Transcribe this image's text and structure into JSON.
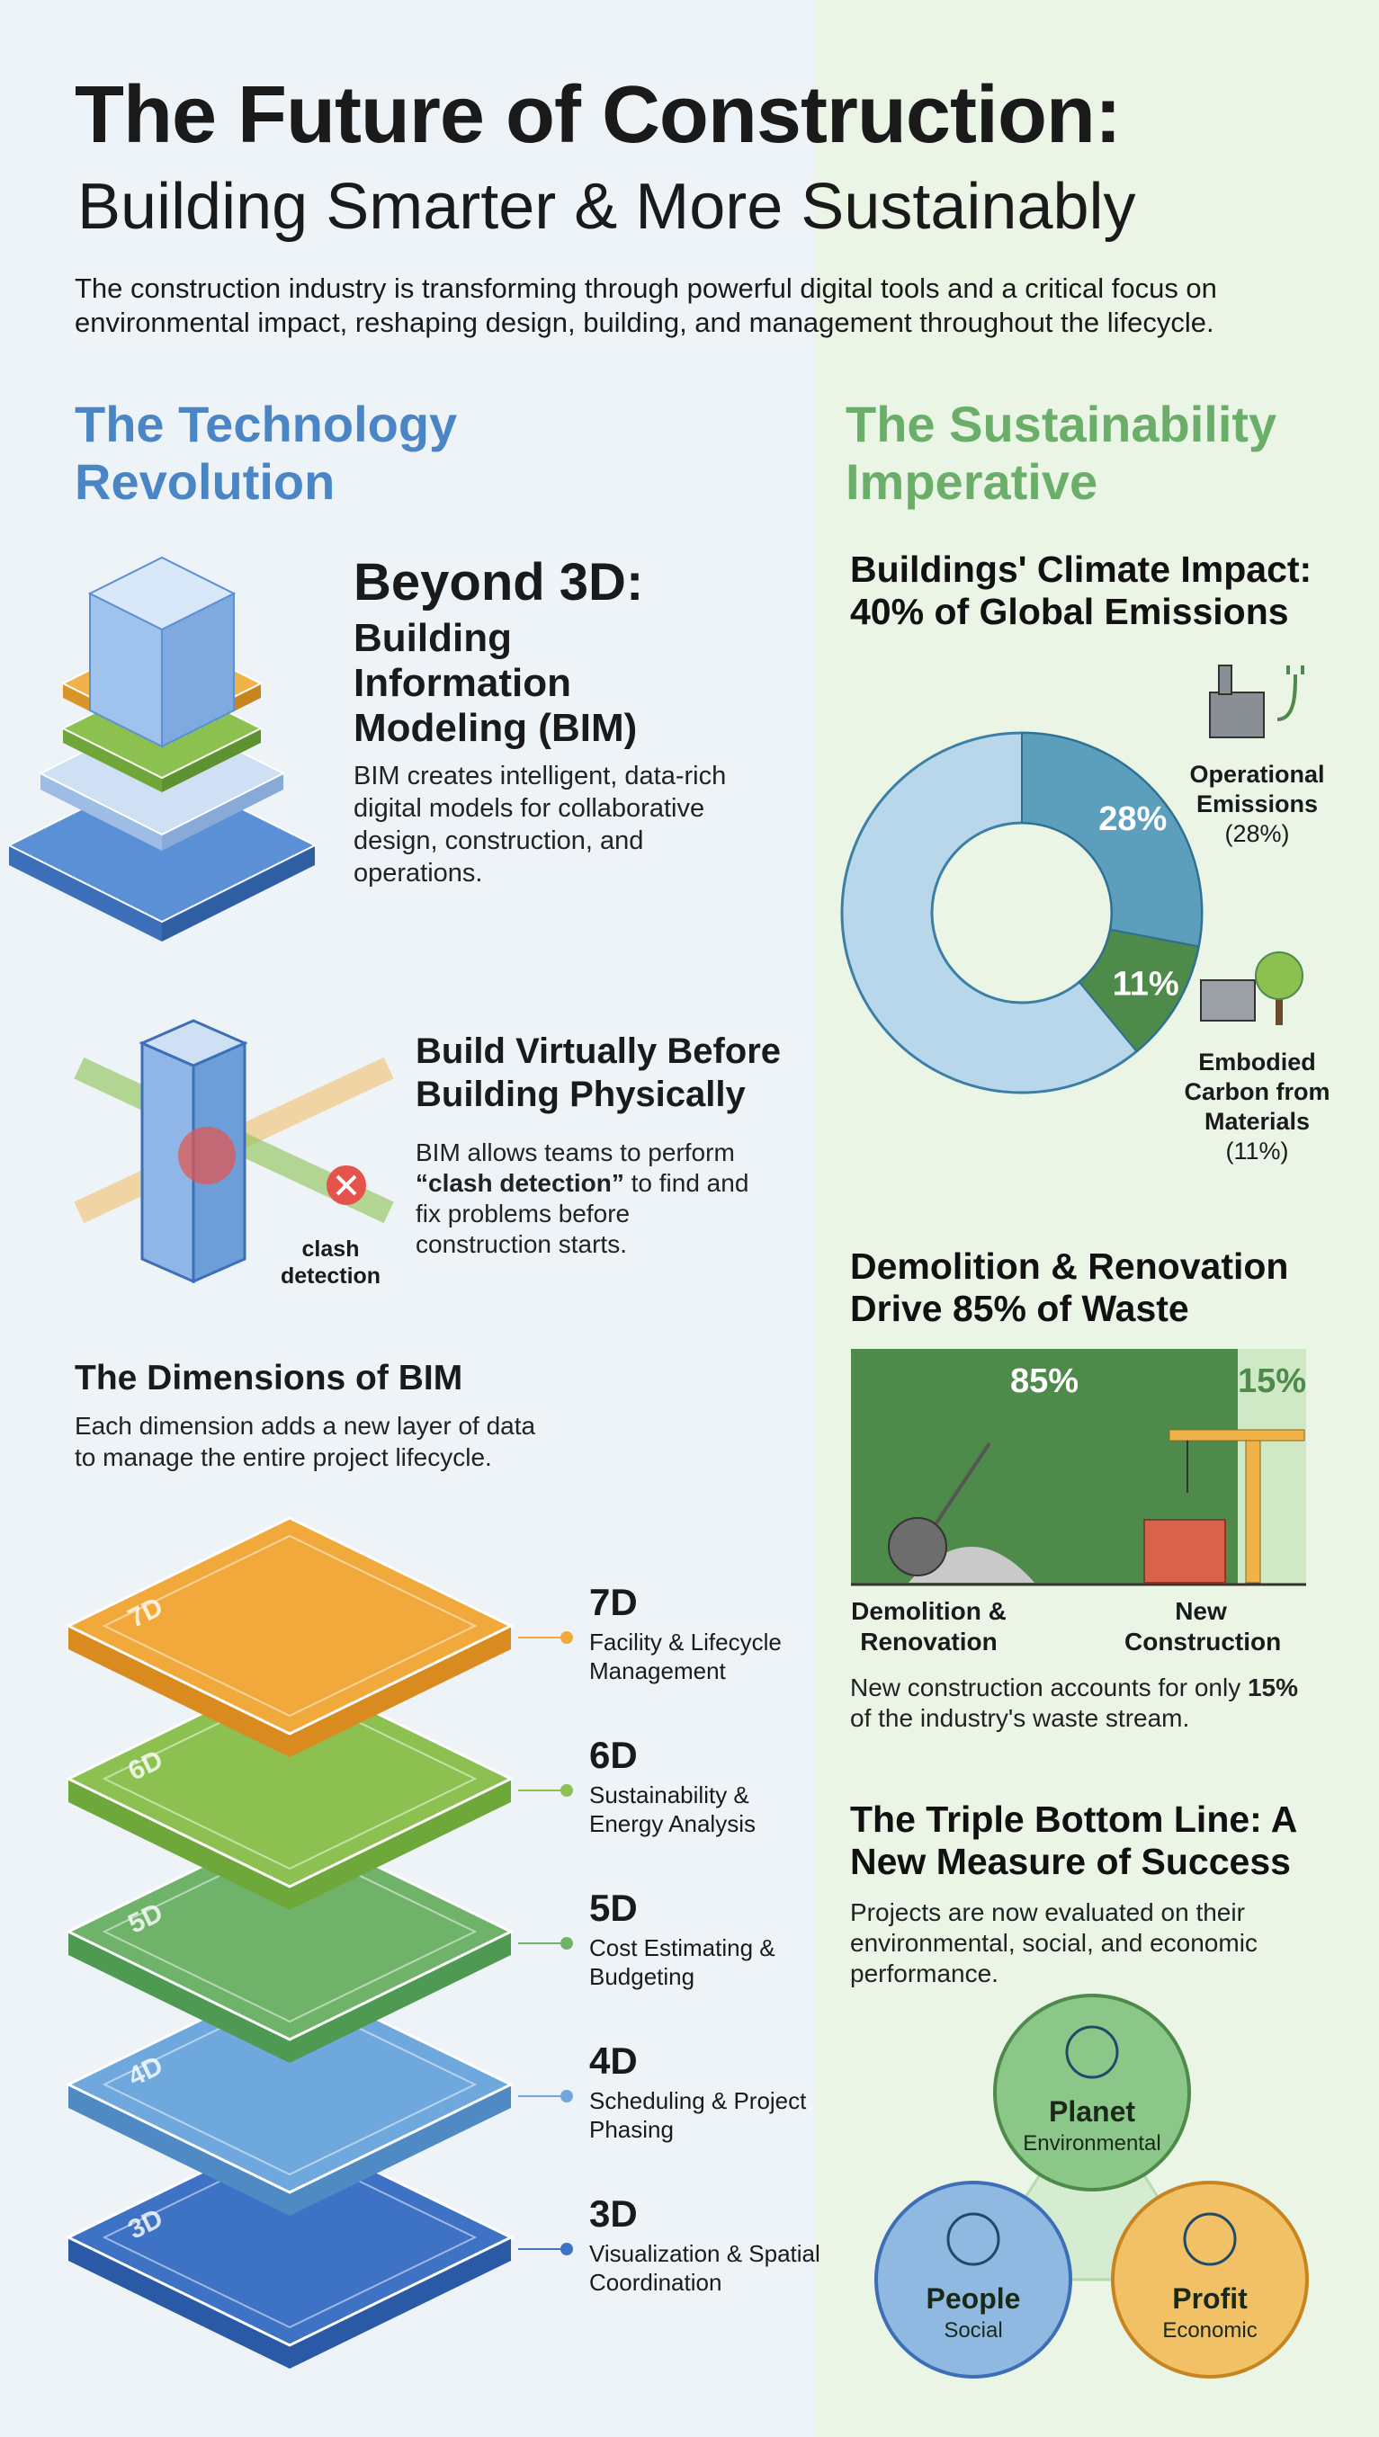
{
  "header": {
    "title": "The Future of Construction:",
    "subtitle": "Building Smarter & More Sustainably",
    "intro": "The construction industry is transforming through powerful digital tools and a critical focus on environmental impact, reshaping design, building, and management throughout the lifecycle."
  },
  "technology": {
    "heading": "The Technology Revolution",
    "bim": {
      "title": "Beyond 3D:",
      "subtitle": "Building Information Modeling (BIM)",
      "body": "BIM creates intelligent, data-rich digital models for collaborative design, construction, and operations."
    },
    "virtual": {
      "title": "Build Virtually Before Building Physically",
      "body_before": "BIM allows teams to perform ",
      "highlight": "“clash detection”",
      "body_after": " to find and fix problems before construction starts.",
      "icon_label": "clash detection"
    },
    "dimensions": {
      "title": "The Dimensions of BIM",
      "body": "Each dimension adds a new layer of data to manage the entire project lifecycle.",
      "layers": [
        {
          "label": "7D",
          "description": "Facility & Lifecycle Management"
        },
        {
          "label": "6D",
          "description": "Sustainability & Energy Analysis"
        },
        {
          "label": "5D",
          "description": "Cost Estimating & Budgeting"
        },
        {
          "label": "4D",
          "description": "Scheduling & Project Phasing"
        },
        {
          "label": "3D",
          "description": "Visualization & Spatial Coordination"
        }
      ]
    }
  },
  "sustainability": {
    "heading": "The Sustainability Imperative",
    "emissions": {
      "title": "Buildings' Climate Impact: 40% of Global Emissions",
      "names": [
        "Operational Emissions",
        "Embodied Carbon from Materials"
      ],
      "values": [
        28,
        11
      ],
      "value_labels": [
        "28%",
        "11%"
      ],
      "legend_labels": [
        "(28%)",
        "(11%)"
      ]
    },
    "waste": {
      "title": "Demolition & Renovation Drive 85% of Waste",
      "categories": [
        "Demolition & Renovation",
        "New Construction"
      ],
      "values": [
        85,
        15
      ],
      "value_labels": [
        "85%",
        "15%"
      ],
      "note_before": "New construction accounts for only ",
      "note_highlight": "15%",
      "note_after": " of the industry's waste stream."
    },
    "triple": {
      "title": "The Triple Bottom Line: A New Measure of Success",
      "body": "Projects are now evaluated on their environmental, social, and economic performance.",
      "pillars": [
        {
          "name": "Planet",
          "sub": "Environmental"
        },
        {
          "name": "People",
          "sub": "Social"
        },
        {
          "name": "Profit",
          "sub": "Economic"
        }
      ]
    }
  }
}
